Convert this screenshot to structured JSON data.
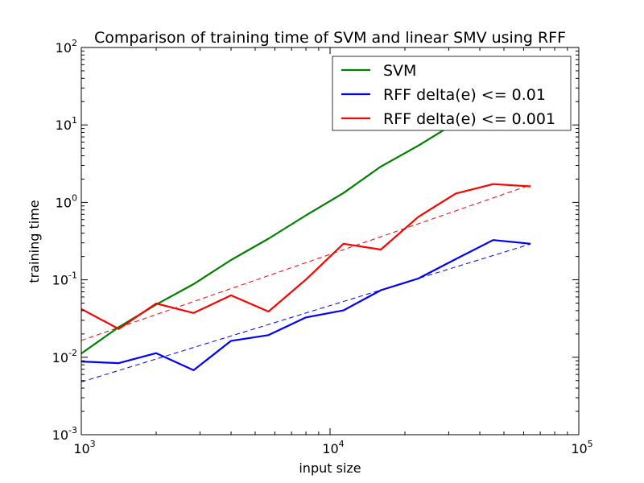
{
  "chart_data": {
    "type": "line",
    "title": "Comparison of training time of SVM and linear SMV using RFF",
    "xlabel": "input size",
    "ylabel": "training time",
    "xscale": "log",
    "yscale": "log",
    "xlim": [
      1000,
      100000
    ],
    "ylim": [
      0.001,
      100
    ],
    "x_ticks": [
      {
        "base": "10",
        "exp": "3"
      },
      {
        "base": "10",
        "exp": "4"
      },
      {
        "base": "10",
        "exp": "5"
      }
    ],
    "y_ticks": [
      {
        "base": "10",
        "exp": "-3"
      },
      {
        "base": "10",
        "exp": "-2"
      },
      {
        "base": "10",
        "exp": "-1"
      },
      {
        "base": "10",
        "exp": "0"
      },
      {
        "base": "10",
        "exp": "1"
      },
      {
        "base": "10",
        "exp": "2"
      }
    ],
    "grid": false,
    "legend_position": "top-right",
    "x": [
      1000,
      1414,
      2000,
      2828,
      4000,
      5657,
      8000,
      11314,
      16000,
      22627,
      32000,
      45255,
      64000
    ],
    "series": [
      {
        "name": "SVM",
        "color": "#008000",
        "style": "solid",
        "values": [
          0.0112,
          0.0245,
          0.048,
          0.088,
          0.18,
          0.34,
          0.68,
          1.32,
          2.9,
          5.4,
          10.7,
          21.5,
          43
        ]
      },
      {
        "name": "RFF delta(e) <= 0.01",
        "color": "#0000ff",
        "style": "solid",
        "values": [
          0.0088,
          0.0084,
          0.0113,
          0.0068,
          0.0163,
          0.0193,
          0.0327,
          0.0403,
          0.0735,
          0.104,
          0.185,
          0.326,
          0.292
        ]
      },
      {
        "name": "RFF delta(e) <= 0.001",
        "color": "#ff0000",
        "style": "solid",
        "values": [
          0.042,
          0.0232,
          0.0495,
          0.0373,
          0.063,
          0.0389,
          0.101,
          0.292,
          0.246,
          0.65,
          1.3,
          1.72,
          1.61
        ]
      }
    ],
    "fit_lines": [
      {
        "color": "#0000ff",
        "style": "dashed",
        "x": [
          1000,
          64000
        ],
        "values": [
          0.0048,
          0.29
        ]
      },
      {
        "color": "#ff0000",
        "style": "dashed",
        "x": [
          1000,
          64000
        ],
        "values": [
          0.0165,
          1.68
        ]
      }
    ]
  }
}
